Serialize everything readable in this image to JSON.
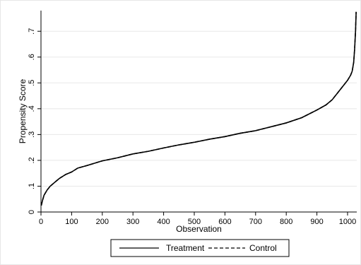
{
  "chart_data": {
    "type": "line",
    "title": "",
    "xlabel": "Observation",
    "ylabel": "Propensity Score",
    "xlim": [
      0,
      1030
    ],
    "ylim": [
      0,
      0.78
    ],
    "x_ticks": [
      0,
      100,
      200,
      300,
      400,
      500,
      600,
      700,
      800,
      900,
      1000
    ],
    "x_tick_labels": [
      "0",
      "100",
      "200",
      "300",
      "400",
      "500",
      "600",
      "700",
      "800",
      "900",
      "1000"
    ],
    "y_ticks": [
      0,
      0.1,
      0.2,
      0.3,
      0.4,
      0.5,
      0.6,
      0.7
    ],
    "y_tick_labels": [
      "0",
      ".1",
      ".2",
      ".3",
      ".4",
      ".5",
      ".6",
      ".7"
    ],
    "grid": true,
    "legend_placement": "bottom",
    "series": [
      {
        "name": "Treatment",
        "line_style": "solid",
        "color": "#000000",
        "x": [
          1,
          5,
          10,
          20,
          30,
          40,
          50,
          60,
          80,
          100,
          120,
          150,
          200,
          250,
          300,
          350,
          400,
          450,
          500,
          550,
          600,
          650,
          700,
          750,
          800,
          850,
          900,
          930,
          950,
          970,
          990,
          1000,
          1010,
          1015,
          1020,
          1023,
          1026,
          1028
        ],
        "y": [
          0.025,
          0.045,
          0.065,
          0.085,
          0.1,
          0.11,
          0.12,
          0.13,
          0.145,
          0.155,
          0.17,
          0.18,
          0.198,
          0.21,
          0.225,
          0.235,
          0.248,
          0.26,
          0.27,
          0.282,
          0.292,
          0.305,
          0.315,
          0.33,
          0.345,
          0.365,
          0.395,
          0.415,
          0.435,
          0.465,
          0.495,
          0.51,
          0.53,
          0.545,
          0.58,
          0.63,
          0.7,
          0.775
        ]
      },
      {
        "name": "Control",
        "line_style": "dashed",
        "color": "#000000",
        "x": [
          1,
          5,
          10,
          20,
          30,
          40,
          50,
          60,
          80,
          100,
          120,
          150,
          200,
          250,
          300,
          350,
          400,
          450,
          500,
          550,
          600,
          650,
          700,
          750,
          800,
          850,
          900,
          930,
          950,
          970,
          990,
          1000,
          1010,
          1015,
          1020,
          1023,
          1026,
          1028
        ],
        "y": [
          0.025,
          0.045,
          0.065,
          0.085,
          0.1,
          0.11,
          0.12,
          0.13,
          0.145,
          0.155,
          0.17,
          0.18,
          0.198,
          0.21,
          0.225,
          0.235,
          0.248,
          0.26,
          0.27,
          0.282,
          0.292,
          0.305,
          0.315,
          0.33,
          0.345,
          0.365,
          0.395,
          0.415,
          0.435,
          0.465,
          0.495,
          0.51,
          0.53,
          0.545,
          0.58,
          0.63,
          0.7,
          0.775
        ]
      }
    ]
  },
  "colors": {
    "plot_background": "#ffffff",
    "outer_background": "#ffffff",
    "grid": "#e8e8e8",
    "axis": "#000000",
    "frame_border": "#e6e6e6"
  }
}
